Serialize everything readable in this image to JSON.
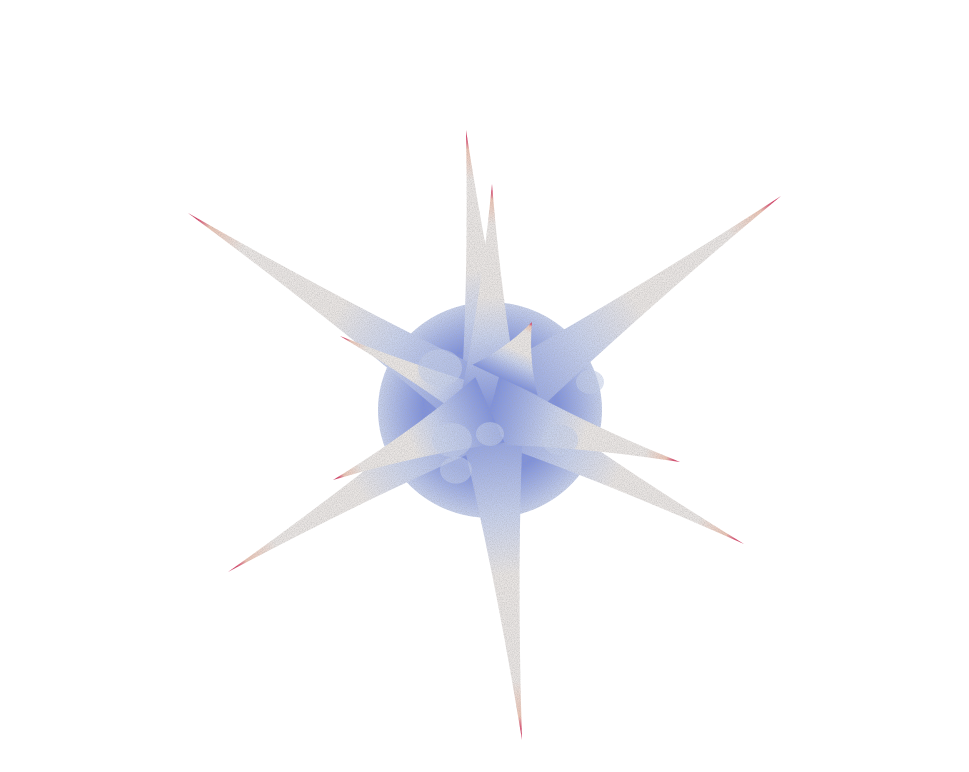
{
  "scene": {
    "background_color": "#ffffff",
    "colormap": {
      "core": "#7a8fe0",
      "mid": "#c9d3ef",
      "spine": "#ece8e6",
      "warm": "#efc5b4",
      "tip": "#d8285c"
    }
  }
}
